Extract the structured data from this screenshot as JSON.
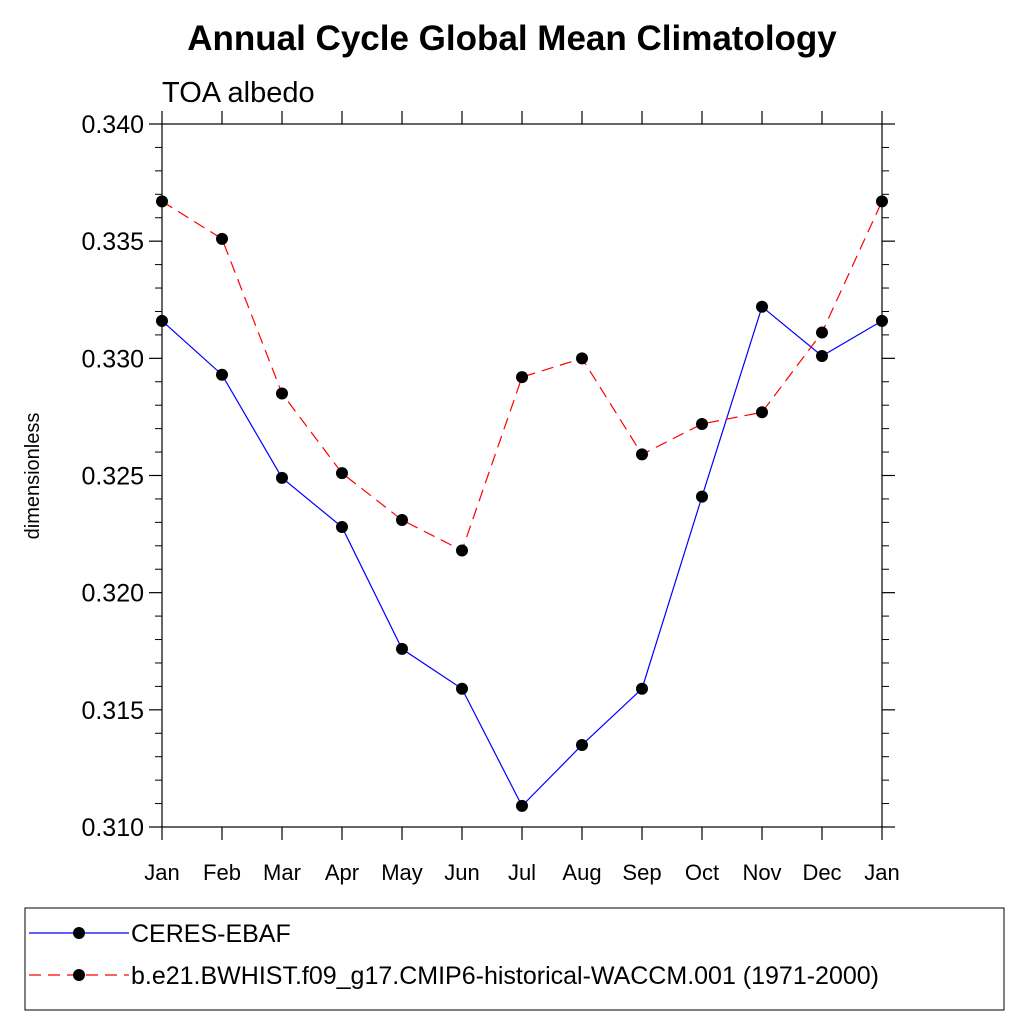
{
  "chart_data": {
    "type": "line",
    "title": "Annual Cycle Global Mean Climatology",
    "subtitle": "TOA albedo",
    "xlabel": "",
    "ylabel": "dimensionless",
    "categories": [
      "Jan",
      "Feb",
      "Mar",
      "Apr",
      "May",
      "Jun",
      "Jul",
      "Aug",
      "Sep",
      "Oct",
      "Nov",
      "Dec",
      "Jan"
    ],
    "ylim": [
      0.31,
      0.34
    ],
    "yticks": [
      "0.310",
      "0.315",
      "0.320",
      "0.325",
      "0.330",
      "0.335",
      "0.340"
    ],
    "yminor_step": 0.001,
    "grid": false,
    "legend_position": "bottom",
    "series": [
      {
        "name": "CERES-EBAF",
        "color": "#0000ff",
        "dash": "solid",
        "marker": "filled-circle",
        "values": [
          0.3316,
          0.3293,
          0.3249,
          0.3228,
          0.3176,
          0.3159,
          0.3109,
          0.3135,
          0.3159,
          0.3241,
          0.3322,
          0.3301,
          0.3316
        ]
      },
      {
        "name": "b.e21.BWHIST.f09_g17.CMIP6-historical-WACCM.001 (1971-2000)",
        "color": "#ff0000",
        "dash": "dashed",
        "marker": "filled-circle",
        "values": [
          0.3367,
          0.3351,
          0.3285,
          0.3251,
          0.3231,
          0.3218,
          0.3292,
          0.33,
          0.3259,
          0.3272,
          0.3277,
          0.3311,
          0.3367
        ]
      }
    ]
  }
}
